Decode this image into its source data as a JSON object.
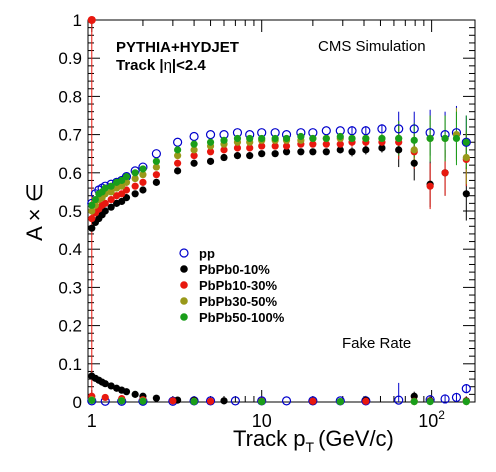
{
  "chart_data": {
    "type": "scatter",
    "xscale": "log",
    "xlim": [
      0.95,
      180
    ],
    "ylim": [
      0,
      1
    ],
    "xlabel_main": "Track p",
    "xlabel_sub": "T",
    "xlabel_units": "(GeV/c)",
    "ylabel": "A × ∈",
    "annotations": {
      "generator": "PYTHIA+HYDJET",
      "track_prefix": "Track |",
      "track_eta": "η",
      "track_suffix": "|<2.4",
      "simulation": "CMS Simulation",
      "fake_rate": "Fake Rate"
    },
    "y_ticks": [
      "0",
      "0.1",
      "0.2",
      "0.3",
      "0.4",
      "0.5",
      "0.6",
      "0.7",
      "0.8",
      "0.9",
      "1"
    ],
    "x_ticks": [
      {
        "value": 1,
        "label": "1"
      },
      {
        "value": 10,
        "label": "10"
      },
      {
        "value": 100,
        "label": "10",
        "exp": "2"
      }
    ],
    "legend": {
      "position": "center-left",
      "entries": [
        {
          "label": "pp",
          "color": "#0000cc",
          "marker": "open-circle"
        },
        {
          "label": "PbPb0-10%",
          "color": "#000000",
          "marker": "filled-circle"
        },
        {
          "label": "PbPb10-30%",
          "color": "#e8180f",
          "marker": "filled-circle"
        },
        {
          "label": "PbPb30-50%",
          "color": "#99991a",
          "marker": "filled-circle"
        },
        {
          "label": "PbPb50-100%",
          "color": "#1a9e1a",
          "marker": "filled-circle"
        }
      ]
    },
    "efficiency_series": [
      {
        "name": "pp",
        "color": "#0000cc",
        "marker": "open",
        "points": [
          [
            1.0,
            0.52
          ],
          [
            1.05,
            0.545
          ],
          [
            1.1,
            0.555
          ],
          [
            1.15,
            0.56
          ],
          [
            1.2,
            0.565
          ],
          [
            1.3,
            0.57
          ],
          [
            1.4,
            0.575
          ],
          [
            1.5,
            0.58
          ],
          [
            1.6,
            0.59
          ],
          [
            1.8,
            0.605
          ],
          [
            2.0,
            0.615
          ],
          [
            2.4,
            0.65
          ],
          [
            3.2,
            0.68
          ],
          [
            4.0,
            0.695
          ],
          [
            5.0,
            0.7
          ],
          [
            6.0,
            0.7
          ],
          [
            7.2,
            0.705
          ],
          [
            8.5,
            0.7
          ],
          [
            10,
            0.705
          ],
          [
            12,
            0.705
          ],
          [
            14,
            0.7
          ],
          [
            17,
            0.705
          ],
          [
            20,
            0.705
          ],
          [
            24,
            0.71
          ],
          [
            29,
            0.71
          ],
          [
            34,
            0.71
          ],
          [
            41,
            0.71
          ],
          [
            51,
            0.715
          ],
          [
            64,
            0.715
          ],
          [
            79,
            0.715
          ],
          [
            98,
            0.705
          ],
          [
            120,
            0.7
          ],
          [
            140,
            0.705
          ],
          [
            160,
            0.68
          ]
        ]
      },
      {
        "name": "PbPb0-10%",
        "color": "#000000",
        "marker": "filled",
        "points": [
          [
            1.0,
            0.455
          ],
          [
            1.05,
            0.47
          ],
          [
            1.1,
            0.48
          ],
          [
            1.15,
            0.49
          ],
          [
            1.2,
            0.5
          ],
          [
            1.3,
            0.51
          ],
          [
            1.4,
            0.52
          ],
          [
            1.5,
            0.525
          ],
          [
            1.6,
            0.535
          ],
          [
            1.8,
            0.545
          ],
          [
            2.0,
            0.555
          ],
          [
            2.4,
            0.575
          ],
          [
            3.2,
            0.605
          ],
          [
            4.0,
            0.625
          ],
          [
            5.0,
            0.63
          ],
          [
            6.0,
            0.64
          ],
          [
            7.2,
            0.645
          ],
          [
            8.5,
            0.645
          ],
          [
            10,
            0.65
          ],
          [
            12,
            0.65
          ],
          [
            14,
            0.655
          ],
          [
            17,
            0.655
          ],
          [
            20,
            0.655
          ],
          [
            24,
            0.655
          ],
          [
            29,
            0.66
          ],
          [
            34,
            0.655
          ],
          [
            41,
            0.66
          ],
          [
            51,
            0.665
          ],
          [
            64,
            0.66
          ],
          [
            79,
            0.625
          ],
          [
            98,
            0.57
          ],
          [
            120,
            0.6
          ],
          [
            160,
            0.545
          ]
        ]
      },
      {
        "name": "PbPb10-30%",
        "color": "#e8180f",
        "marker": "filled",
        "points": [
          [
            1.0,
            0.48
          ],
          [
            1.05,
            0.495
          ],
          [
            1.1,
            0.505
          ],
          [
            1.15,
            0.515
          ],
          [
            1.2,
            0.52
          ],
          [
            1.3,
            0.53
          ],
          [
            1.4,
            0.54
          ],
          [
            1.5,
            0.545
          ],
          [
            1.6,
            0.555
          ],
          [
            1.8,
            0.565
          ],
          [
            2.0,
            0.575
          ],
          [
            2.4,
            0.595
          ],
          [
            3.2,
            0.625
          ],
          [
            4.0,
            0.645
          ],
          [
            5.0,
            0.655
          ],
          [
            6.0,
            0.66
          ],
          [
            7.2,
            0.665
          ],
          [
            8.5,
            0.665
          ],
          [
            10,
            0.67
          ],
          [
            12,
            0.67
          ],
          [
            14,
            0.67
          ],
          [
            17,
            0.675
          ],
          [
            20,
            0.675
          ],
          [
            24,
            0.675
          ],
          [
            29,
            0.675
          ],
          [
            34,
            0.68
          ],
          [
            41,
            0.68
          ],
          [
            51,
            0.68
          ],
          [
            64,
            0.68
          ],
          [
            79,
            0.655
          ],
          [
            98,
            0.565
          ],
          [
            120,
            0.6
          ],
          [
            160,
            0.635
          ]
        ]
      },
      {
        "name": "PbPb30-50%",
        "color": "#99991a",
        "marker": "filled",
        "points": [
          [
            1.0,
            0.5
          ],
          [
            1.05,
            0.515
          ],
          [
            1.1,
            0.53
          ],
          [
            1.15,
            0.535
          ],
          [
            1.2,
            0.545
          ],
          [
            1.3,
            0.55
          ],
          [
            1.4,
            0.56
          ],
          [
            1.5,
            0.565
          ],
          [
            1.6,
            0.575
          ],
          [
            1.8,
            0.585
          ],
          [
            2.0,
            0.595
          ],
          [
            2.4,
            0.615
          ],
          [
            3.2,
            0.645
          ],
          [
            4.0,
            0.66
          ],
          [
            5.0,
            0.67
          ],
          [
            6.0,
            0.675
          ],
          [
            7.2,
            0.68
          ],
          [
            8.5,
            0.68
          ],
          [
            10,
            0.685
          ],
          [
            12,
            0.685
          ],
          [
            14,
            0.685
          ],
          [
            17,
            0.685
          ],
          [
            20,
            0.69
          ],
          [
            24,
            0.69
          ],
          [
            29,
            0.69
          ],
          [
            34,
            0.69
          ],
          [
            41,
            0.69
          ],
          [
            51,
            0.69
          ],
          [
            64,
            0.69
          ],
          [
            79,
            0.66
          ],
          [
            98,
            0.69
          ],
          [
            120,
            0.69
          ],
          [
            140,
            0.7
          ],
          [
            160,
            0.64
          ]
        ]
      },
      {
        "name": "PbPb50-100%",
        "color": "#1a9e1a",
        "marker": "filled",
        "points": [
          [
            1.0,
            0.515
          ],
          [
            1.05,
            0.53
          ],
          [
            1.1,
            0.545
          ],
          [
            1.15,
            0.55
          ],
          [
            1.2,
            0.56
          ],
          [
            1.3,
            0.565
          ],
          [
            1.4,
            0.575
          ],
          [
            1.5,
            0.58
          ],
          [
            1.6,
            0.59
          ],
          [
            1.8,
            0.6
          ],
          [
            2.0,
            0.61
          ],
          [
            2.4,
            0.63
          ],
          [
            3.2,
            0.66
          ],
          [
            4.0,
            0.675
          ],
          [
            5.0,
            0.68
          ],
          [
            6.0,
            0.685
          ],
          [
            7.2,
            0.69
          ],
          [
            8.5,
            0.69
          ],
          [
            10,
            0.69
          ],
          [
            12,
            0.69
          ],
          [
            14,
            0.69
          ],
          [
            17,
            0.695
          ],
          [
            20,
            0.69
          ],
          [
            24,
            0.69
          ],
          [
            29,
            0.695
          ],
          [
            34,
            0.69
          ],
          [
            41,
            0.69
          ],
          [
            51,
            0.69
          ],
          [
            64,
            0.69
          ],
          [
            79,
            0.685
          ],
          [
            98,
            0.69
          ],
          [
            120,
            0.69
          ],
          [
            140,
            0.69
          ],
          [
            160,
            0.68
          ]
        ]
      }
    ],
    "fake_rate_series": [
      {
        "name": "pp",
        "color": "#0000cc",
        "marker": "open",
        "points": [
          [
            1.0,
            0.003
          ],
          [
            1.2,
            0.002
          ],
          [
            1.5,
            0.002
          ],
          [
            2.0,
            0.002
          ],
          [
            3.0,
            0.002
          ],
          [
            4.0,
            0.003
          ],
          [
            5.0,
            0.003
          ],
          [
            7.0,
            0.003
          ],
          [
            10,
            0.003
          ],
          [
            14,
            0.003
          ],
          [
            20,
            0.003
          ],
          [
            29,
            0.003
          ],
          [
            41,
            0.003
          ],
          [
            64,
            0.005
          ],
          [
            98,
            0.006
          ],
          [
            120,
            0.008
          ],
          [
            140,
            0.012
          ],
          [
            160,
            0.035
          ]
        ]
      },
      {
        "name": "PbPb0-10%",
        "color": "#000000",
        "marker": "filled",
        "points": [
          [
            1.0,
            0.068
          ],
          [
            1.05,
            0.062
          ],
          [
            1.1,
            0.057
          ],
          [
            1.15,
            0.052
          ],
          [
            1.2,
            0.048
          ],
          [
            1.3,
            0.042
          ],
          [
            1.4,
            0.036
          ],
          [
            1.5,
            0.031
          ],
          [
            1.6,
            0.027
          ],
          [
            1.8,
            0.02
          ],
          [
            2.0,
            0.015
          ],
          [
            2.4,
            0.01
          ],
          [
            3.2,
            0.005
          ],
          [
            4.0,
            0.004
          ],
          [
            6.0,
            0.003
          ],
          [
            10,
            0.002
          ],
          [
            20,
            0.002
          ],
          [
            41,
            0.004
          ],
          [
            79,
            0.015
          ],
          [
            98,
            0.003
          ],
          [
            160,
            0.003
          ]
        ]
      },
      {
        "name": "PbPb10-30%",
        "color": "#e8180f",
        "marker": "filled",
        "points": [
          [
            1.0,
            0.015
          ],
          [
            1.2,
            0.012
          ],
          [
            1.5,
            0.009
          ],
          [
            2.0,
            0.006
          ],
          [
            3.0,
            0.003
          ],
          [
            5.0,
            0.002
          ],
          [
            10,
            0.002
          ],
          [
            20,
            0.002
          ],
          [
            41,
            0.002
          ],
          [
            79,
            0.002
          ],
          [
            98,
            0.002
          ],
          [
            160,
            0.002
          ]
        ]
      },
      {
        "name": "PbPb30-50%",
        "color": "#99991a",
        "marker": "filled",
        "points": [
          [
            1.0,
            0.006
          ],
          [
            1.5,
            0.004
          ],
          [
            2.0,
            0.003
          ],
          [
            4.0,
            0.002
          ],
          [
            10,
            0.001
          ],
          [
            29,
            0.001
          ],
          [
            79,
            0.001
          ],
          [
            160,
            0.001
          ]
        ]
      },
      {
        "name": "PbPb50-100%",
        "color": "#1a9e1a",
        "marker": "filled",
        "points": [
          [
            1.0,
            0.004
          ],
          [
            1.5,
            0.003
          ],
          [
            2.0,
            0.002
          ],
          [
            4.0,
            0.001
          ],
          [
            10,
            0.001
          ],
          [
            29,
            0.001
          ],
          [
            79,
            0.001
          ],
          [
            98,
            0.001
          ],
          [
            160,
            0.001
          ]
        ]
      }
    ]
  }
}
